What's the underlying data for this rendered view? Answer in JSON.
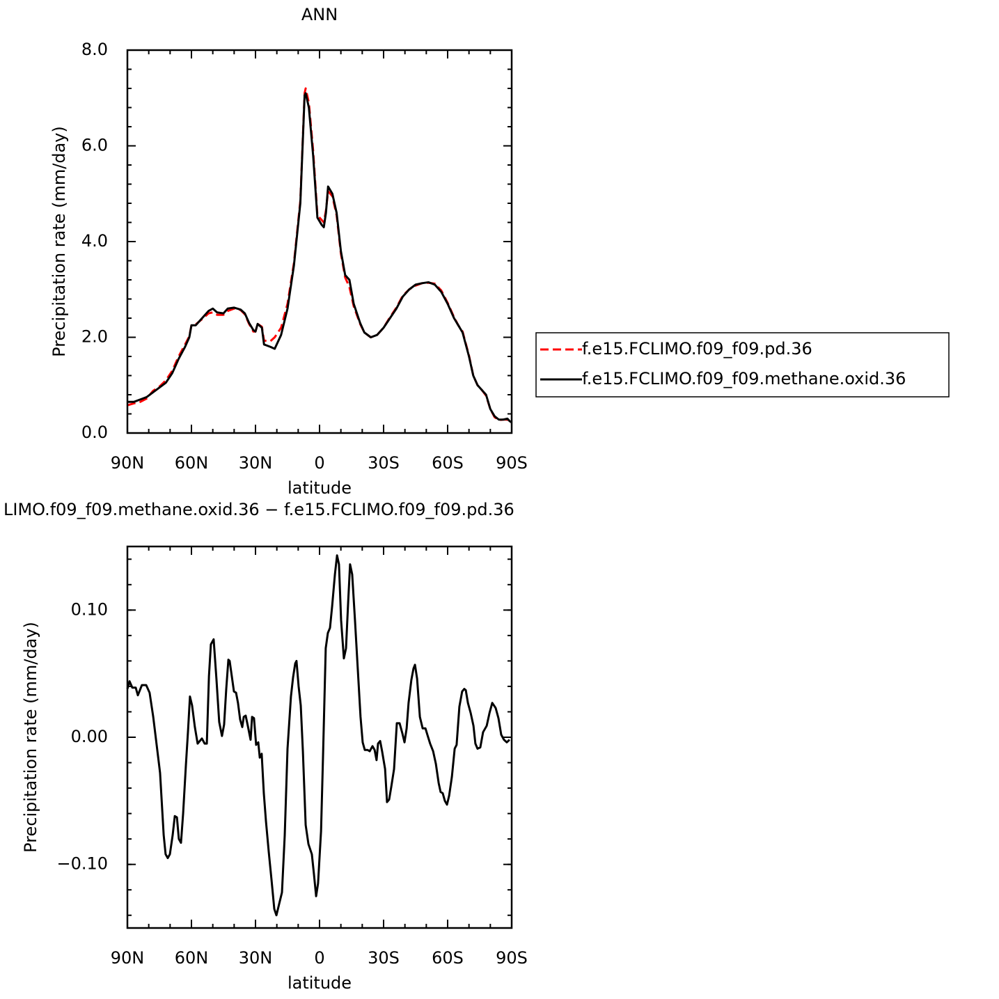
{
  "chart_data": [
    {
      "type": "line",
      "title": "ANN",
      "xlabel": "latitude",
      "ylabel": "Precipitation rate (mm/day)",
      "x": [
        90,
        87,
        84,
        81,
        78,
        75,
        72,
        69,
        66,
        63,
        61,
        60,
        58,
        55,
        52,
        50,
        48,
        45,
        43,
        40,
        37,
        35,
        33,
        31,
        30,
        29,
        27,
        26,
        23,
        21,
        18,
        15,
        12,
        9,
        7,
        6.5,
        5,
        3,
        1,
        -1,
        -2,
        -3,
        -4,
        -6,
        -8,
        -10,
        -12,
        -14,
        -16,
        -19,
        -21,
        -24,
        -27,
        -30,
        -33,
        -36,
        -39,
        -42,
        -45,
        -48,
        -51,
        -54,
        -57,
        -60,
        -63,
        -65,
        -67,
        -70,
        -72,
        -74,
        -76,
        -78,
        -80,
        -82,
        -84,
        -86,
        -88,
        -89,
        -90
      ],
      "series": [
        {
          "name": "f.e15.FCLIMO.f09_f09.pd.36",
          "color": "#ff0000",
          "dash": true,
          "values": [
            0.58,
            0.62,
            0.65,
            0.72,
            0.88,
            0.97,
            1.1,
            1.3,
            1.6,
            1.85,
            2.02,
            2.25,
            2.27,
            2.38,
            2.5,
            2.52,
            2.47,
            2.47,
            2.55,
            2.6,
            2.57,
            2.48,
            2.28,
            2.12,
            2.12,
            2.28,
            2.22,
            1.93,
            1.92,
            2.0,
            2.2,
            2.7,
            3.55,
            4.85,
            7.1,
            7.2,
            6.9,
            5.9,
            4.55,
            4.45,
            4.4,
            4.65,
            5.05,
            4.95,
            4.55,
            3.75,
            3.25,
            3.05,
            2.65,
            2.28,
            2.1,
            2.0,
            2.05,
            2.2,
            2.42,
            2.62,
            2.87,
            3.0,
            3.08,
            3.13,
            3.14,
            3.12,
            2.98,
            2.72,
            2.42,
            2.25,
            2.12,
            1.62,
            1.2,
            1.0,
            0.9,
            0.78,
            0.5,
            0.33,
            0.27,
            0.28,
            0.28,
            0.23,
            0.2
          ]
        },
        {
          "name": "f.e15.FCLIMO.f09_f09.methane.oxid.36",
          "color": "#000000",
          "dash": false,
          "values": [
            0.65,
            0.65,
            0.7,
            0.75,
            0.85,
            0.95,
            1.05,
            1.25,
            1.55,
            1.8,
            2.0,
            2.25,
            2.25,
            2.4,
            2.55,
            2.6,
            2.52,
            2.5,
            2.6,
            2.62,
            2.58,
            2.5,
            2.3,
            2.15,
            2.12,
            2.28,
            2.2,
            1.85,
            1.8,
            1.76,
            2.05,
            2.6,
            3.5,
            4.8,
            7.05,
            7.1,
            6.8,
            5.8,
            4.5,
            4.35,
            4.3,
            4.6,
            5.15,
            5.0,
            4.6,
            3.8,
            3.3,
            3.2,
            2.7,
            2.3,
            2.1,
            2.0,
            2.05,
            2.2,
            2.4,
            2.6,
            2.85,
            3.0,
            3.1,
            3.13,
            3.15,
            3.1,
            2.95,
            2.7,
            2.4,
            2.25,
            2.1,
            1.6,
            1.2,
            1.0,
            0.9,
            0.8,
            0.5,
            0.35,
            0.28,
            0.28,
            0.3,
            0.25,
            0.22
          ]
        }
      ],
      "xlim": [
        90,
        -90
      ],
      "xticks": [
        {
          "value": 90,
          "label": "90N"
        },
        {
          "value": 60,
          "label": "60N"
        },
        {
          "value": 30,
          "label": "30N"
        },
        0,
        {
          "value": -30,
          "label": "30S"
        },
        {
          "value": -60,
          "label": "60S"
        },
        {
          "value": -90,
          "label": "90S"
        }
      ],
      "ylim": [
        0,
        8
      ],
      "yticks": [
        {
          "value": 0,
          "label": "0.0"
        },
        {
          "value": 2,
          "label": "2.0"
        },
        {
          "value": 4,
          "label": "4.0"
        },
        {
          "value": 6,
          "label": "6.0"
        },
        {
          "value": 8,
          "label": "8.0"
        }
      ],
      "legend": "right"
    },
    {
      "type": "line",
      "title": "LIMO.f09_f09.methane.oxid.36 − f.e15.FCLIMO.f09_f09.pd.36",
      "xlabel": "latitude",
      "ylabel": "Precipitation rate (mm/day)",
      "x": [
        90,
        89,
        87.7,
        86.1,
        85.1,
        83.2,
        81.2,
        79.6,
        77.9,
        76.3,
        74.7,
        73.0,
        72.1,
        71.1,
        70.1,
        68.8,
        67.8,
        66.8,
        65.9,
        64.9,
        63.9,
        62.6,
        61.6,
        60.7,
        59.7,
        58.4,
        57.1,
        55.1,
        53.8,
        52.8,
        51.8,
        50.9,
        49.6,
        48.3,
        47.0,
        45.7,
        44.7,
        43.7,
        42.7,
        42.1,
        41.1,
        40.1,
        39.1,
        38.2,
        37.2,
        36.2,
        35.5,
        34.6,
        33.6,
        32.3,
        31.6,
        30.7,
        29.7,
        28.7,
        28.0,
        27.1,
        26.1,
        25.1,
        23.8,
        22.5,
        21.2,
        20.2,
        18.9,
        17.6,
        16.3,
        15.0,
        13.4,
        12.4,
        11.4,
        10.8,
        9.8,
        8.8,
        7.8,
        6.5,
        5.2,
        3.6,
        2.6,
        1.6,
        0.7,
        -0.7,
        -1.6,
        -2.9,
        -3.9,
        -4.9,
        -5.9,
        -7.2,
        -8.2,
        -9.1,
        -10.1,
        -11.4,
        -12.4,
        -13.4,
        -14.3,
        -15.3,
        -16.6,
        -17.9,
        -19.2,
        -20.2,
        -21.2,
        -22.5,
        -23.5,
        -24.8,
        -25.8,
        -26.7,
        -27.4,
        -28.4,
        -29.3,
        -30.7,
        -31.6,
        -32.6,
        -33.6,
        -34.9,
        -36.2,
        -37.5,
        -38.8,
        -39.8,
        -40.8,
        -41.7,
        -43.0,
        -44.0,
        -44.7,
        -45.7,
        -47.0,
        -48.3,
        -49.6,
        -50.5,
        -51.8,
        -53.2,
        -54.5,
        -55.8,
        -56.7,
        -57.7,
        -58.7,
        -59.7,
        -60.7,
        -62.0,
        -63.3,
        -64.2,
        -65.5,
        -66.8,
        -67.8,
        -68.5,
        -69.5,
        -70.8,
        -72.1,
        -73.0,
        -74.0,
        -75.3,
        -76.6,
        -78.3,
        -79.6,
        -80.9,
        -82.5,
        -83.8,
        -85.1,
        -86.4,
        -87.7,
        -89.0
      ],
      "series": [
        {
          "color": "#000000",
          "dash": false,
          "values": [
            0.038,
            0.044,
            0.039,
            0.039,
            0.033,
            0.041,
            0.041,
            0.035,
            0.016,
            -0.006,
            -0.028,
            -0.077,
            -0.092,
            -0.095,
            -0.092,
            -0.077,
            -0.062,
            -0.063,
            -0.08,
            -0.083,
            -0.06,
            -0.022,
            0.005,
            0.032,
            0.025,
            0.008,
            -0.005,
            -0.001,
            -0.005,
            -0.005,
            0.048,
            0.073,
            0.077,
            0.046,
            0.012,
            0.001,
            0.01,
            0.038,
            0.061,
            0.06,
            0.048,
            0.036,
            0.035,
            0.027,
            0.014,
            0.008,
            0.016,
            0.017,
            0.009,
            -0.002,
            0.016,
            0.015,
            -0.006,
            -0.004,
            -0.016,
            -0.013,
            -0.044,
            -0.066,
            -0.09,
            -0.112,
            -0.135,
            -0.14,
            -0.131,
            -0.122,
            -0.077,
            -0.009,
            0.032,
            0.047,
            0.058,
            0.06,
            0.04,
            0.025,
            -0.011,
            -0.069,
            -0.084,
            -0.092,
            -0.108,
            -0.125,
            -0.115,
            -0.074,
            -0.017,
            0.07,
            0.082,
            0.086,
            0.103,
            0.128,
            0.143,
            0.136,
            0.092,
            0.062,
            0.07,
            0.106,
            0.136,
            0.128,
            0.092,
            0.054,
            0.016,
            -0.004,
            -0.01,
            -0.01,
            -0.011,
            -0.007,
            -0.01,
            -0.018,
            -0.005,
            -0.003,
            -0.011,
            -0.025,
            -0.051,
            -0.049,
            -0.039,
            -0.025,
            0.011,
            0.011,
            0.003,
            -0.004,
            0.007,
            0.027,
            0.045,
            0.054,
            0.057,
            0.046,
            0.016,
            0.007,
            0.007,
            0.002,
            -0.005,
            -0.011,
            -0.021,
            -0.036,
            -0.043,
            -0.044,
            -0.05,
            -0.053,
            -0.046,
            -0.031,
            -0.009,
            -0.006,
            0.024,
            0.036,
            0.038,
            0.037,
            0.027,
            0.019,
            0.009,
            -0.005,
            -0.009,
            -0.008,
            0.004,
            0.009,
            0.019,
            0.027,
            0.023,
            0.015,
            0.002,
            -0.002,
            -0.004,
            -0.002
          ]
        }
      ],
      "xlim": [
        90,
        -90
      ],
      "xticks": [
        {
          "value": 90,
          "label": "90N"
        },
        {
          "value": 60,
          "label": "60N"
        },
        {
          "value": 30,
          "label": "30N"
        },
        0,
        {
          "value": -30,
          "label": "30S"
        },
        {
          "value": -60,
          "label": "60S"
        },
        {
          "value": -90,
          "label": "90S"
        }
      ],
      "ylim": [
        -0.15,
        0.15
      ],
      "yticks": [
        {
          "value": -0.1,
          "label": "−0.10"
        },
        {
          "value": 0,
          "label": "0.00"
        },
        {
          "value": 0.1,
          "label": "0.10"
        }
      ]
    }
  ]
}
